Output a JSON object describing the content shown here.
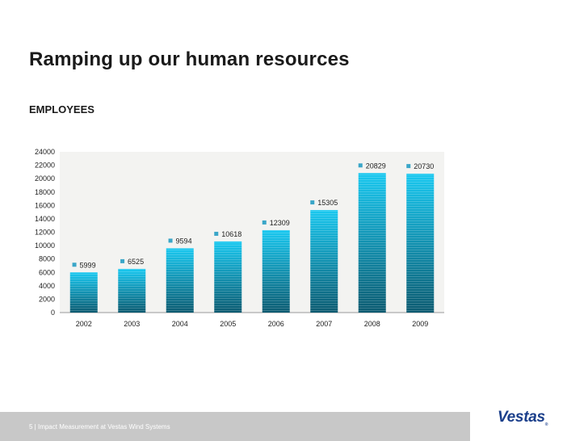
{
  "slide": {
    "title": "Ramping up our human resources",
    "subtitle": "EMPLOYEES"
  },
  "footer": {
    "text": "5 | Impact Measurement at Vestas Wind Systems",
    "logo": "Vestas",
    "logo_mark": "®"
  },
  "colors": {
    "bar_top": "#19c8f0",
    "bar_bottom": "#0b5a70",
    "plot_bg": "#f3f3f1",
    "label_marker": "#3aa6c8"
  },
  "chart_data": {
    "type": "bar",
    "title": "",
    "xlabel": "",
    "ylabel": "",
    "categories": [
      "2002",
      "2003",
      "2004",
      "2005",
      "2006",
      "2007",
      "2008",
      "2009"
    ],
    "values": [
      5999,
      6525,
      9594,
      10618,
      12309,
      15305,
      20829,
      20730
    ],
    "value_labels": [
      "5999",
      "6525",
      "9594",
      "10618",
      "12309",
      "15305",
      "20829",
      "20730"
    ],
    "ylim": [
      0,
      24000
    ],
    "yticks": [
      0,
      2000,
      4000,
      6000,
      8000,
      10000,
      12000,
      14000,
      16000,
      18000,
      20000,
      22000,
      24000
    ],
    "ytick_labels": [
      "0",
      "2000",
      "4000",
      "6000",
      "8000",
      "10000",
      "12000",
      "14000",
      "16000",
      "18000",
      "20000",
      "22000",
      "24000"
    ],
    "grid": false,
    "legend": "none"
  }
}
